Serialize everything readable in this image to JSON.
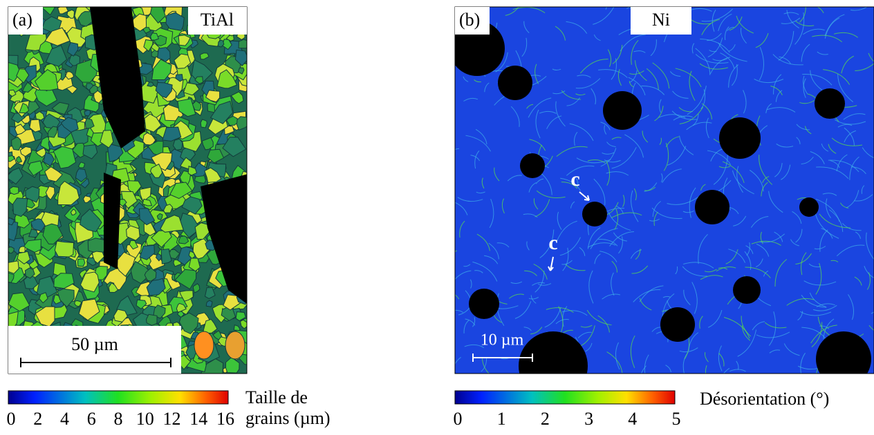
{
  "panels": [
    {
      "label": "(a)",
      "material": "TiAl",
      "scale_bar": "50 µm",
      "colorbar": {
        "title": [
          "Taille de",
          "grains (µm)"
        ],
        "lim": [
          0,
          16
        ],
        "ticks": [
          0,
          2,
          4,
          6,
          8,
          10,
          12,
          14,
          16
        ]
      }
    },
    {
      "label": "(b)",
      "material": "Ni",
      "scale_bar": "10 µm",
      "annotations": [
        "c",
        "c"
      ],
      "colorbar": {
        "title": [
          "Désorientation (°)"
        ],
        "lim": [
          0,
          5
        ],
        "ticks": [
          0,
          1,
          2,
          3,
          4,
          5
        ]
      }
    }
  ]
}
